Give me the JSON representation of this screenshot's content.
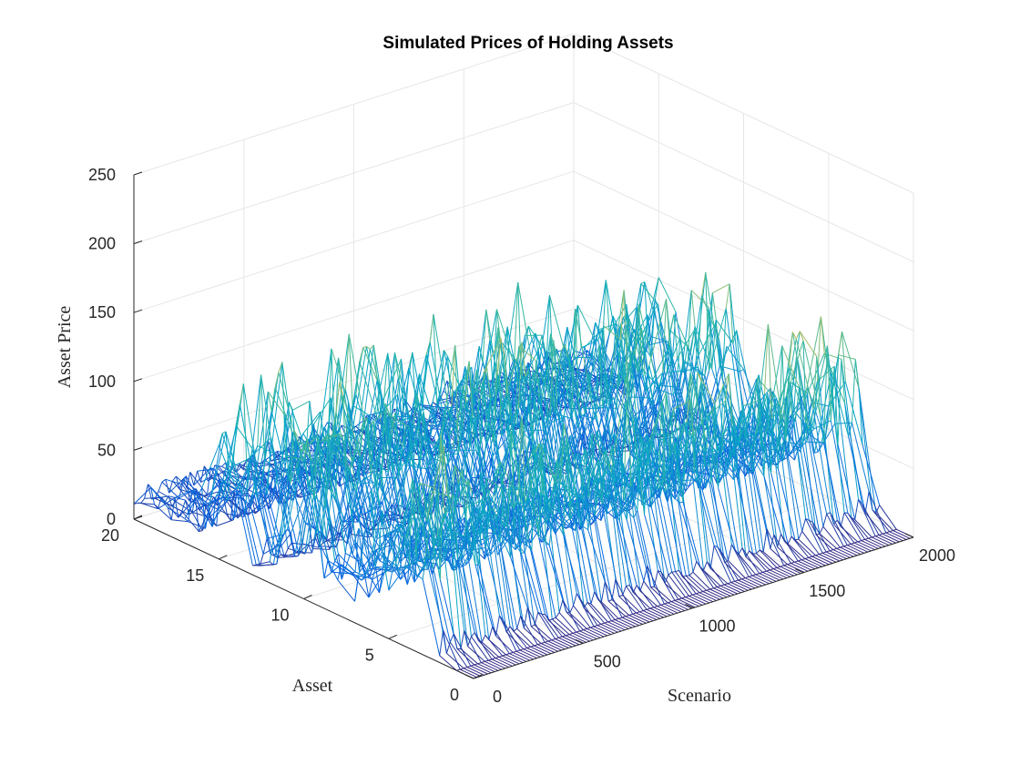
{
  "chart_data": {
    "type": "mesh3d",
    "title": "Simulated Prices of Holding Assets",
    "xlabel": "Scenario",
    "ylabel": "Asset",
    "zlabel": "Asset Price",
    "xlim": [
      0,
      2000
    ],
    "ylim": [
      0,
      20
    ],
    "zlim": [
      0,
      250
    ],
    "xticks": [
      0,
      500,
      1000,
      1500,
      2000
    ],
    "yticks": [
      0,
      5,
      10,
      15,
      20
    ],
    "zticks": [
      0,
      50,
      100,
      150,
      200,
      250
    ],
    "grid": true,
    "colormap": "parula",
    "colormap_colors": [
      "#352a87",
      "#0363e1",
      "#1485d4",
      "#06a7c6",
      "#38b99e",
      "#92bf73",
      "#d9ba56",
      "#fcce2e",
      "#f9fb0e"
    ],
    "scenarios": 2000,
    "assets": 20,
    "asset_price_levels": [
      {
        "asset": 2,
        "low": 5,
        "high": 25
      },
      {
        "asset": 3,
        "low": 50,
        "high": 150
      },
      {
        "asset": 4,
        "low": 55,
        "high": 160
      },
      {
        "asset": 5,
        "low": 35,
        "high": 95
      },
      {
        "asset": 6,
        "low": 40,
        "high": 110
      },
      {
        "asset": 7,
        "low": 15,
        "high": 70
      },
      {
        "asset": 8,
        "low": 20,
        "high": 85
      },
      {
        "asset": 9,
        "low": 15,
        "high": 60
      },
      {
        "asset": 10,
        "low": 60,
        "high": 160
      },
      {
        "asset": 11,
        "low": 60,
        "high": 150
      },
      {
        "asset": 12,
        "low": 10,
        "high": 45
      },
      {
        "asset": 13,
        "low": 5,
        "high": 40
      },
      {
        "asset": 14,
        "low": 45,
        "high": 120
      },
      {
        "asset": 15,
        "low": 55,
        "high": 150
      },
      {
        "asset": 16,
        "low": 15,
        "high": 55
      },
      {
        "asset": 17,
        "low": 5,
        "high": 45
      },
      {
        "asset": 18,
        "low": 10,
        "high": 35
      },
      {
        "asset": 19,
        "low": 10,
        "high": 35
      },
      {
        "asset": 20,
        "low": 10,
        "high": 30
      }
    ]
  }
}
